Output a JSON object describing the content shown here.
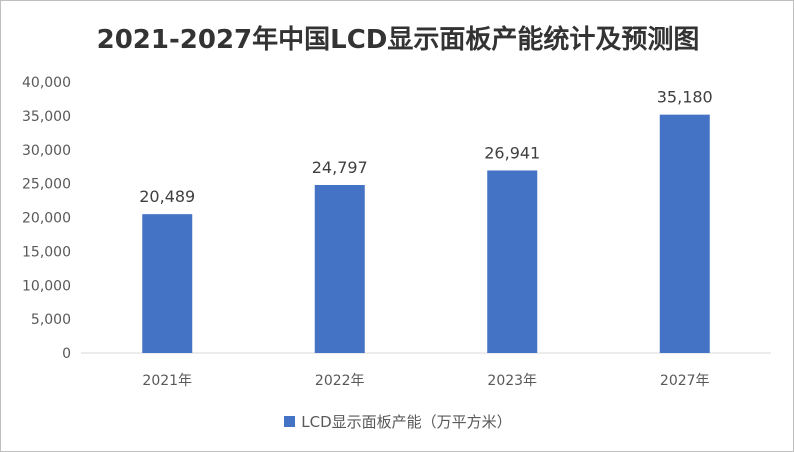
{
  "chart_data": {
    "type": "bar",
    "title": "2021-2027年中国LCD显示面板产能统计及预测图",
    "categories": [
      "2021年",
      "2022年",
      "2023年",
      "2027年"
    ],
    "series": [
      {
        "name": "LCD显示面板产能（万平方米）",
        "values": [
          20489,
          24797,
          26941,
          35180
        ],
        "color": "#4472C4"
      }
    ],
    "data_labels": [
      "20,489",
      "24,797",
      "26,941",
      "35,180"
    ],
    "yticks": [
      "0",
      "5,000",
      "10,000",
      "15,000",
      "20,000",
      "25,000",
      "30,000",
      "35,000",
      "40,000"
    ],
    "ylim": [
      0,
      40000
    ],
    "grid": false,
    "legend_position": "bottom"
  }
}
